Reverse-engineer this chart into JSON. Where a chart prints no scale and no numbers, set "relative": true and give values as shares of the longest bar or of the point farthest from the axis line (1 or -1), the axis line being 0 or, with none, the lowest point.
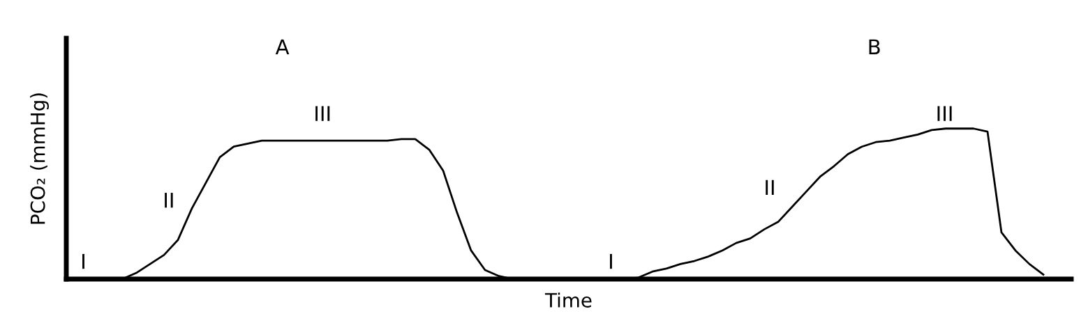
{
  "chart_data": {
    "type": "line",
    "relative": true,
    "xlabel": "Time",
    "ylabel": "PCO₂ (mmHg)",
    "color": "#000000",
    "grid": false,
    "legend": false,
    "marker": "none",
    "line_style": "solid",
    "tick_labels": false,
    "annotations": [
      "A",
      "B",
      "I",
      "II",
      "III",
      "I",
      "II",
      "III"
    ],
    "categories": [
      null,
      null,
      null,
      null,
      null,
      null,
      null,
      null,
      null,
      null,
      null,
      null,
      null,
      null,
      null,
      null,
      null,
      null,
      null,
      null,
      null,
      null,
      null,
      null,
      null,
      null,
      null,
      null,
      null,
      null,
      null,
      null,
      null,
      null,
      null,
      null,
      null,
      null,
      null,
      null,
      null,
      null,
      null,
      null,
      null,
      null,
      null,
      null,
      null,
      null,
      null,
      null,
      null,
      null,
      null,
      null,
      null,
      null,
      null,
      null,
      null,
      null,
      null,
      null,
      null,
      null,
      null,
      null,
      null,
      null,
      null,
      null,
      null
    ],
    "values": [
      0,
      0,
      0,
      0,
      0,
      0.04,
      0.1,
      0.16,
      0.26,
      0.47,
      0.64,
      0.81,
      0.88,
      0.9,
      0.92,
      0.92,
      0.92,
      0.92,
      0.92,
      0.92,
      0.92,
      0.92,
      0.92,
      0.92,
      0.93,
      0.93,
      0.86,
      0.72,
      0.44,
      0.19,
      0.06,
      0.02,
      0,
      0,
      0,
      0,
      0,
      0,
      0,
      0,
      0,
      0.01,
      0.05,
      0.07,
      0.1,
      0.12,
      0.15,
      0.19,
      0.24,
      0.27,
      0.33,
      0.38,
      0.48,
      0.58,
      0.68,
      0.75,
      0.83,
      0.88,
      0.91,
      0.92,
      0.94,
      0.96,
      0.99,
      1.0,
      1.0,
      1.0,
      0.98,
      0.31,
      0.19,
      0.1,
      0.03,
      null,
      null
    ]
  }
}
